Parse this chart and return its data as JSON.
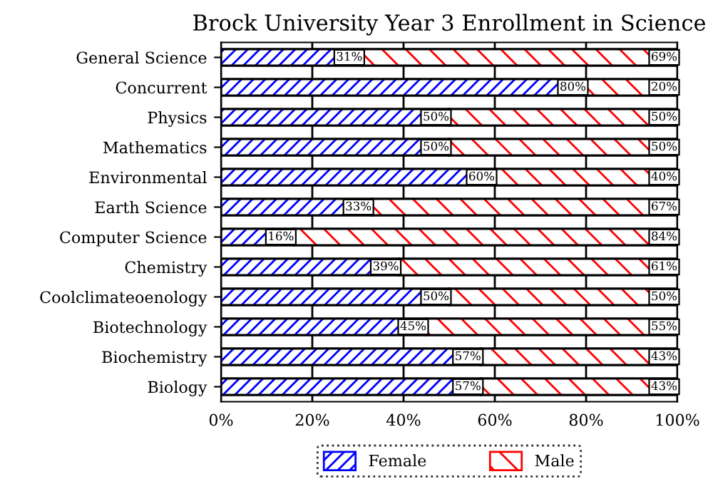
{
  "chart_data": {
    "type": "bar",
    "orientation": "horizontal",
    "stacked": true,
    "title": "Brock University Year 3 Enrollment in Science",
    "categories": [
      "General Science",
      "Concurrent",
      "Physics",
      "Mathematics",
      "Environmental",
      "Earth Science",
      "Computer Science",
      "Chemistry",
      "Coolclimateoenology",
      "Biotechnology",
      "Biochemistry",
      "Biology"
    ],
    "series": [
      {
        "name": "Female",
        "color": "#0000ff",
        "values": [
          31,
          80,
          50,
          50,
          60,
          33,
          16,
          39,
          50,
          45,
          57,
          57
        ],
        "value_labels": [
          "31%",
          "80%",
          "50%",
          "50%",
          "60%",
          "33%",
          "16%",
          "39%",
          "50%",
          "45%",
          "57%",
          "57%"
        ]
      },
      {
        "name": "Male",
        "color": "#ff0000",
        "values": [
          69,
          20,
          50,
          50,
          40,
          67,
          84,
          61,
          50,
          55,
          43,
          43
        ],
        "value_labels": [
          "69%",
          "20%",
          "50%",
          "50%",
          "40%",
          "67%",
          "84%",
          "61%",
          "50%",
          "55%",
          "43%",
          "43%"
        ]
      }
    ],
    "xlim": [
      0,
      100
    ],
    "xticks": [
      {
        "value": 0,
        "label": "0%"
      },
      {
        "value": 20,
        "label": "20%"
      },
      {
        "value": 40,
        "label": "40%"
      },
      {
        "value": 60,
        "label": "60%"
      },
      {
        "value": 80,
        "label": "80%"
      },
      {
        "value": 100,
        "label": "100%"
      }
    ],
    "grid": "x",
    "legend": "bottom"
  }
}
